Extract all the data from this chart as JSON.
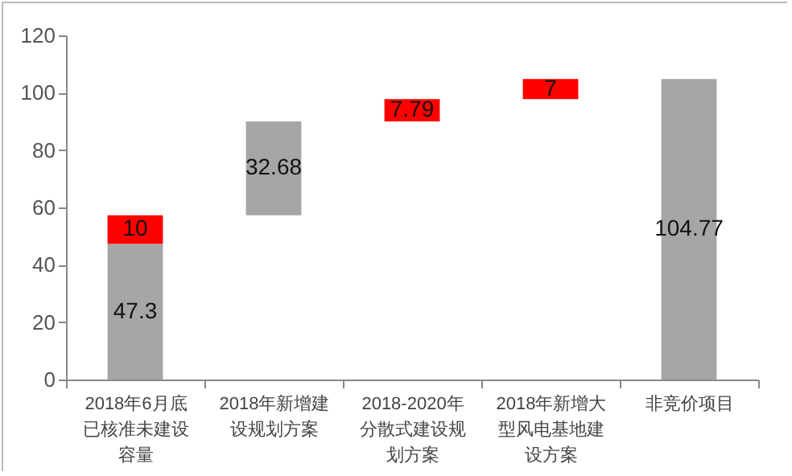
{
  "chart_data": {
    "type": "bar",
    "categories": [
      "2018年6月底已核准未建设容量",
      "2018年新增建设规划方案",
      "2018-2020年分散式建设规划方案",
      "2018年新增大型风电基地建设方案",
      "非竞价项目"
    ],
    "series": [
      {
        "color": "#a6a6a6",
        "values": [
          47.3,
          32.68,
          null,
          null,
          104.77
        ],
        "base": [
          0,
          57.3,
          null,
          null,
          0
        ]
      },
      {
        "color": "#ff0000",
        "values": [
          10,
          null,
          7.79,
          7,
          null
        ],
        "base": [
          47.3,
          null,
          89.98,
          97.77,
          null
        ]
      }
    ],
    "data_labels": true,
    "ylim": [
      0,
      120
    ],
    "yticks": [
      0,
      20,
      40,
      60,
      80,
      100,
      120
    ],
    "grid": false
  }
}
